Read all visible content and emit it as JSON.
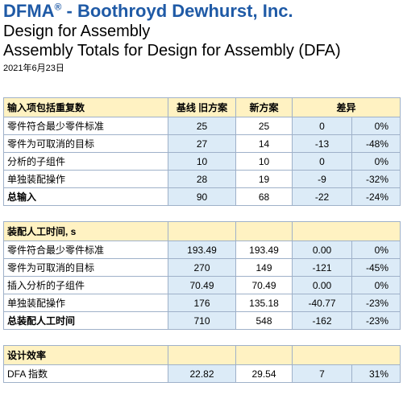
{
  "header": {
    "brand": "DFMA",
    "brand_reg": "®",
    "brand_rest": " - Boothroyd Dewhurst, Inc.",
    "subtitle1": "Design for Assembly",
    "subtitle2": "Assembly Totals for Design for Assembly (DFA)",
    "date": "2021年6月23日"
  },
  "sections": [
    {
      "title": "输入项包括重复数",
      "col1": "基线 旧方案",
      "col2": "新方案",
      "col3": "差异",
      "rows": [
        {
          "label": "零件符合最少零件标准",
          "v1": "25",
          "v2": "25",
          "d": "0",
          "p": "0%"
        },
        {
          "label": "零件为可取消的目标",
          "v1": "27",
          "v2": "14",
          "d": "-13",
          "p": "-48%"
        },
        {
          "label": "分析的子组件",
          "v1": "10",
          "v2": "10",
          "d": "0",
          "p": "0%"
        },
        {
          "label": "单独装配操作",
          "v1": "28",
          "v2": "19",
          "d": "-9",
          "p": "-32%"
        },
        {
          "label": "总输入",
          "v1": "90",
          "v2": "68",
          "d": "-22",
          "p": "-24%"
        }
      ]
    },
    {
      "title": "装配人工时间, s",
      "rows": [
        {
          "label": "零件符合最少零件标准",
          "v1": "193.49",
          "v2": "193.49",
          "d": "0.00",
          "p": "0%"
        },
        {
          "label": "零件为可取消的目标",
          "v1": "270",
          "v2": "149",
          "d": "-121",
          "p": "-45%"
        },
        {
          "label": "插入分析的子组件",
          "v1": "70.49",
          "v2": "70.49",
          "d": "0.00",
          "p": "0%"
        },
        {
          "label": "单独装配操作",
          "v1": "176",
          "v2": "135.18",
          "d": "-40.77",
          "p": "-23%"
        },
        {
          "label": "总装配人工时间",
          "v1": "710",
          "v2": "548",
          "d": "-162",
          "p": "-23%"
        }
      ]
    },
    {
      "title": "设计效率",
      "rows": [
        {
          "label": "DFA 指数",
          "v1": "22.82",
          "v2": "29.54",
          "d": "7",
          "p": "31%"
        }
      ]
    }
  ]
}
